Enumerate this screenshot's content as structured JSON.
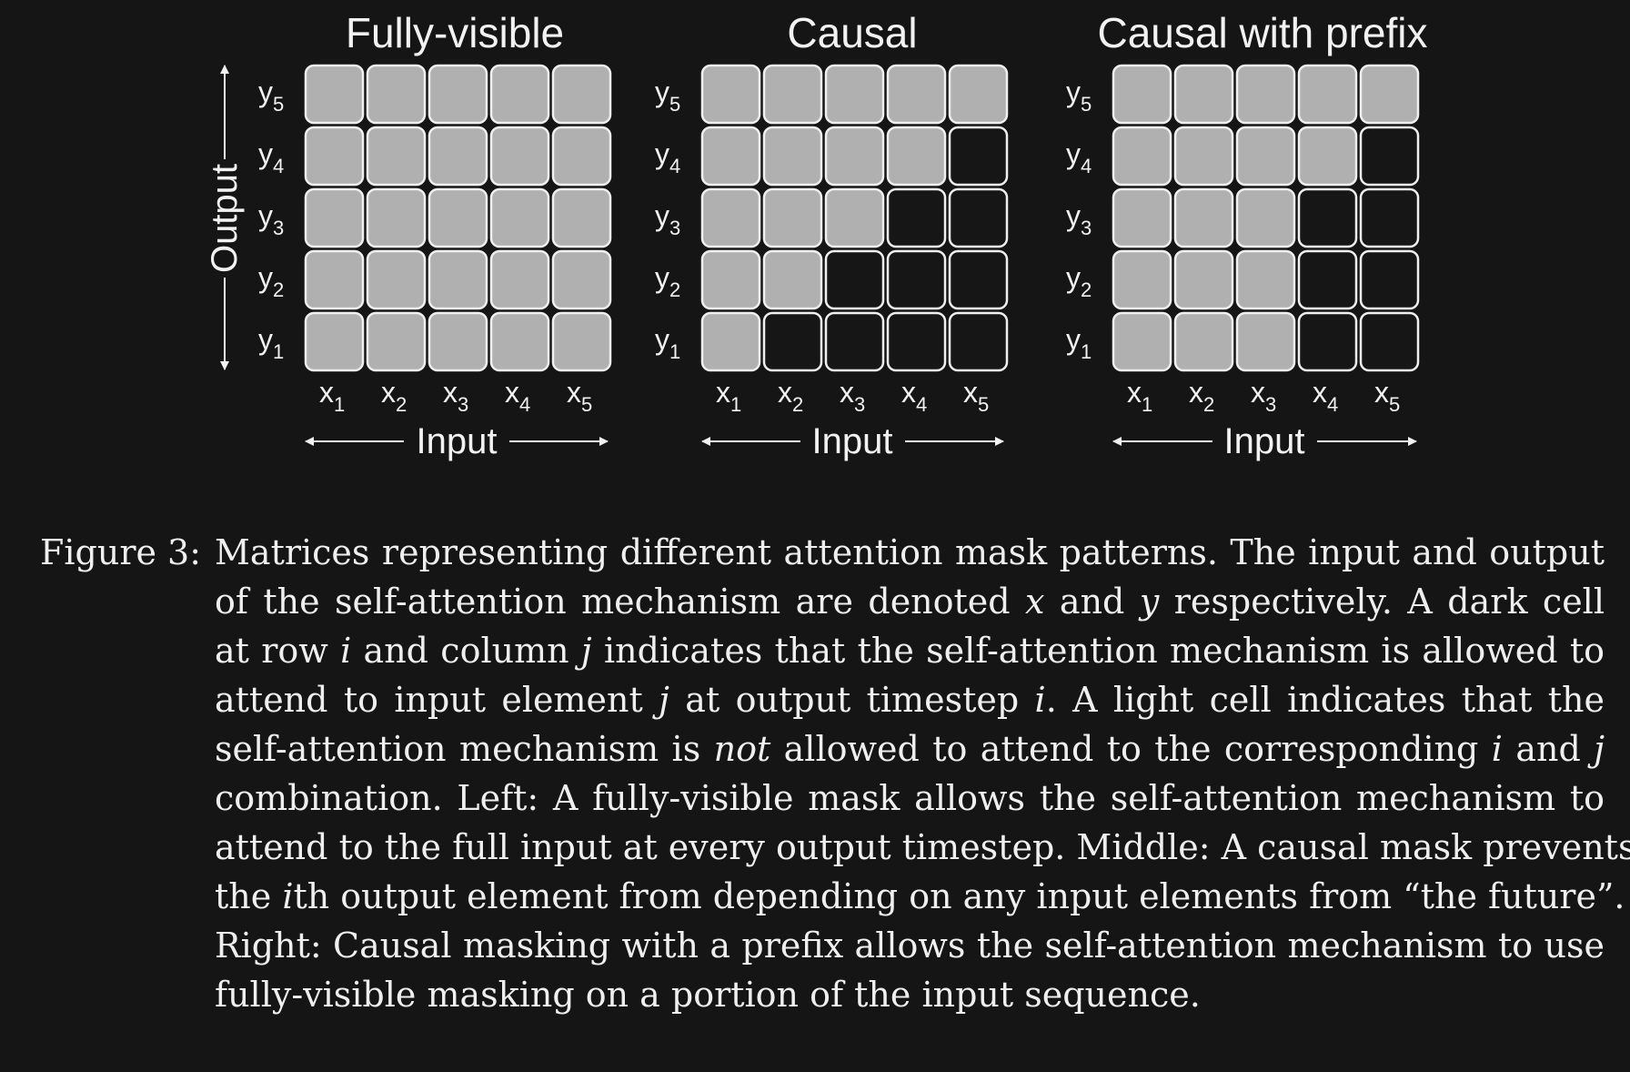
{
  "panels": [
    {
      "title": "Fully-visible",
      "mask": "fully-visible"
    },
    {
      "title": "Causal",
      "mask": "causal"
    },
    {
      "title": "Causal with prefix",
      "mask": "causal-prefix",
      "prefix_length": 3
    }
  ],
  "grid_size": 5,
  "row_tokens": {
    "base": "y",
    "subs": [
      "5",
      "4",
      "3",
      "2",
      "1"
    ]
  },
  "col_tokens": {
    "base": "x",
    "subs": [
      "1",
      "2",
      "3",
      "4",
      "5"
    ]
  },
  "axis_labels": {
    "x": "Input",
    "y": "Output"
  },
  "colors": {
    "background": "#151515",
    "cell_on": "#b0b0b0",
    "cell_off": "#161616",
    "cell_border": "#efefef",
    "text": "#f2f2f2"
  },
  "caption": {
    "label": "Figure 3:",
    "lines": [
      "Matrices representing different attention mask patterns. The input and output",
      "of the self-attention mechanism are denoted <i>x</i> and <i>y</i> respectively. A dark cell",
      "at row <i>i</i> and column <i>j</i> indicates that the self-attention mechanism is allowed to",
      "attend to input element <i>j</i> at output timestep <i>i</i>. A light cell indicates that the",
      "self-attention mechanism is <i>not</i> allowed to attend to the corresponding <i>i</i> and <i>j</i>",
      "combination. Left: A fully-visible mask allows the self-attention mechanism to",
      "attend to the full input at every output timestep. Middle: A causal mask prevents",
      "the <i>i</i>th output element from depending on any input elements from “the future”.",
      "Right: Causal masking with a prefix allows the self-attention mechanism to use",
      "fully-visible masking on a portion of the input sequence."
    ]
  }
}
